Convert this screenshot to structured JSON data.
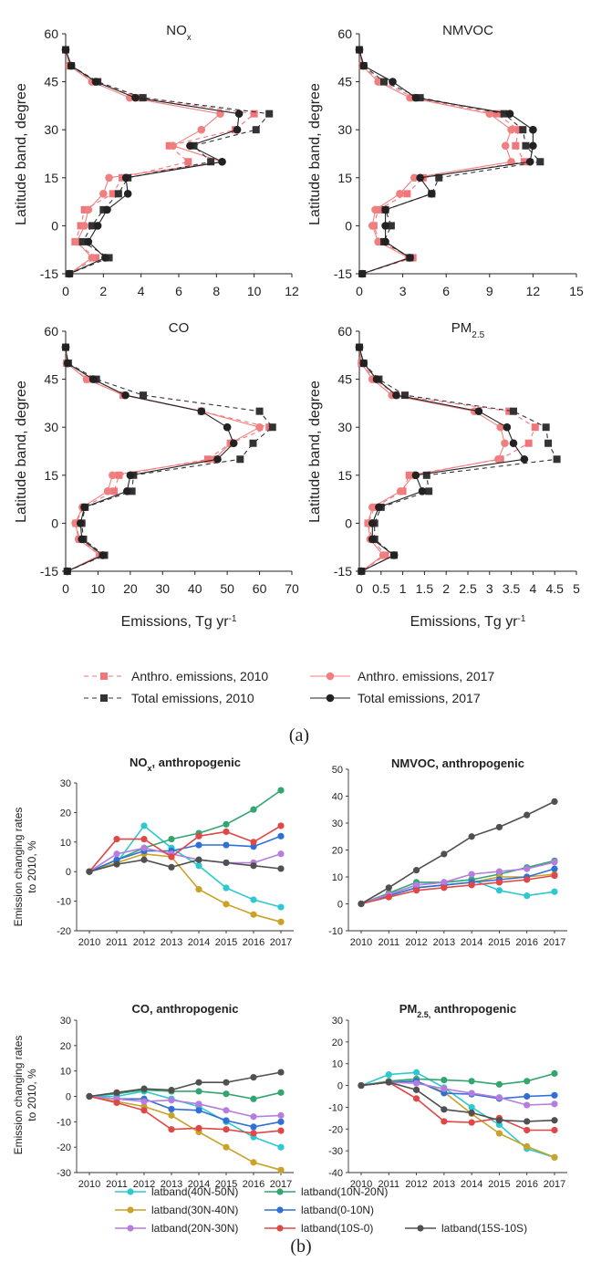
{
  "figure_a": {
    "caption": "(a)",
    "y_axis_label": "Latitude band, degree",
    "x_axis_label_main": "Emissions, Tg yr",
    "x_axis_label_sup": "-1",
    "legend": [
      {
        "label": "Anthro. emissions, 2010",
        "series": "anthro2010"
      },
      {
        "label": "Anthro. emissions, 2017",
        "series": "anthro2017"
      },
      {
        "label": "Total emissions, 2010",
        "series": "total2010"
      },
      {
        "label": "Total emissions, 2017",
        "series": "total2017"
      }
    ],
    "colors": {
      "anthro2010": "#f0767c",
      "anthro2017": "#f08080",
      "total2010": "#333333",
      "total2017": "#222222"
    }
  },
  "figure_b": {
    "caption": "(b)",
    "y_axis_label_line1": "Emission changing rates",
    "y_axis_label_line2": "to 2010, %",
    "legend": [
      {
        "label": "latband(40N-50N)",
        "color": "#2ec8d0"
      },
      {
        "label": "latband(10N-20N)",
        "color": "#34a56f"
      },
      {
        "label": "latband(30N-40N)",
        "color": "#c9a227"
      },
      {
        "label": "latband(0-10N)",
        "color": "#2f6fd6"
      },
      {
        "label": "latband(20N-30N)",
        "color": "#b57de0"
      },
      {
        "label": "latband(10S-0)",
        "color": "#e04848"
      },
      {
        "label": "latband(15S-10S)",
        "color": "#505050"
      }
    ]
  },
  "chart_data": [
    {
      "type": "line",
      "panel": "a1",
      "title_main": "NO",
      "title_sub": "x",
      "xlim": [
        0,
        12
      ],
      "xticks": [
        "0",
        "2",
        "4",
        "6",
        "8",
        "10",
        "12"
      ],
      "ylim": [
        -15,
        60
      ],
      "yticks": [
        "-15",
        "0",
        "15",
        "30",
        "45",
        "60"
      ],
      "y": [
        55,
        50,
        45,
        40,
        35,
        30,
        25,
        20,
        15,
        10,
        5,
        0,
        -5,
        -10,
        -15
      ],
      "series": [
        {
          "name": "Anthro. emissions, 2010",
          "key": "anthro2010",
          "values": [
            0,
            0.2,
            1.5,
            4.0,
            10.0,
            9.0,
            5.5,
            6.5,
            3.0,
            2.5,
            1.0,
            0.8,
            0.5,
            1.6,
            0.2
          ]
        },
        {
          "name": "Anthro. emissions, 2017",
          "key": "anthro2017",
          "values": [
            0,
            0.2,
            1.4,
            3.4,
            8.2,
            7.2,
            5.7,
            8.3,
            2.3,
            2.0,
            1.2,
            1.0,
            0.6,
            1.4,
            0.2
          ]
        },
        {
          "name": "Total emissions, 2010",
          "key": "total2010",
          "values": [
            0,
            0.3,
            1.7,
            4.1,
            10.8,
            10.1,
            6.8,
            7.7,
            3.3,
            2.8,
            2.0,
            1.4,
            0.9,
            2.3,
            0.2
          ]
        },
        {
          "name": "Total emissions, 2017",
          "key": "total2017",
          "values": [
            0,
            0.3,
            1.6,
            3.7,
            9.2,
            9.1,
            6.6,
            8.3,
            3.2,
            3.3,
            2.2,
            1.7,
            1.2,
            2.1,
            0.2
          ]
        }
      ]
    },
    {
      "type": "line",
      "panel": "a2",
      "title_main": "NMVOC",
      "title_sub": "",
      "xlim": [
        0,
        15
      ],
      "xticks": [
        "0",
        "3",
        "6",
        "9",
        "12",
        "15"
      ],
      "ylim": [
        -15,
        60
      ],
      "yticks": [
        "-15",
        "0",
        "15",
        "30",
        "45",
        "60"
      ],
      "y": [
        55,
        50,
        45,
        40,
        35,
        30,
        25,
        20,
        15,
        10,
        5,
        0,
        -5,
        -10,
        -15
      ],
      "series": [
        {
          "name": "Anthro. emissions, 2010",
          "key": "anthro2010",
          "values": [
            0,
            0.2,
            1.5,
            3.8,
            9.5,
            11.0,
            10.8,
            11.4,
            4.4,
            3.3,
            1.3,
            1.0,
            1.4,
            3.7,
            0.2
          ]
        },
        {
          "name": "Anthro. emissions, 2017",
          "key": "anthro2017",
          "values": [
            0,
            0.2,
            1.3,
            3.5,
            9.0,
            10.5,
            10.1,
            10.5,
            3.8,
            2.8,
            1.1,
            0.9,
            1.3,
            3.4,
            0.2
          ]
        },
        {
          "name": "Total emissions, 2010",
          "key": "total2010",
          "values": [
            0,
            0.3,
            1.7,
            4.2,
            10.0,
            11.3,
            11.5,
            12.5,
            5.5,
            5.0,
            1.8,
            2.2,
            1.7,
            3.5,
            0.2
          ]
        },
        {
          "name": "Total emissions, 2017",
          "key": "total2017",
          "values": [
            0,
            0.3,
            2.3,
            3.9,
            10.4,
            12.0,
            12.0,
            11.8,
            4.2,
            5.0,
            1.8,
            1.8,
            1.8,
            3.5,
            0.2
          ]
        }
      ]
    },
    {
      "type": "line",
      "panel": "a3",
      "title_main": "CO",
      "title_sub": "",
      "xlim": [
        0,
        70
      ],
      "xticks": [
        "0",
        "10",
        "20",
        "30",
        "40",
        "50",
        "60",
        "70"
      ],
      "ylim": [
        -15,
        60
      ],
      "yticks": [
        "-15",
        "0",
        "15",
        "30",
        "45",
        "60"
      ],
      "y": [
        55,
        50,
        45,
        40,
        35,
        30,
        25,
        20,
        15,
        10,
        5,
        0,
        -5,
        -10,
        -15
      ],
      "series": [
        {
          "name": "Anthro. emissions, 2010",
          "key": "anthro2010",
          "values": [
            0,
            0.3,
            6.8,
            17.8,
            42.0,
            63.0,
            51.0,
            44.0,
            16.5,
            15.0,
            5.5,
            3.2,
            4.3,
            11.0,
            0.5
          ]
        },
        {
          "name": "Anthro. emissions, 2017",
          "key": "anthro2017",
          "values": [
            0,
            0.3,
            6.5,
            18.0,
            42.0,
            60.0,
            51.0,
            46.0,
            14.5,
            13.0,
            5.2,
            3.0,
            4.0,
            10.5,
            0.5
          ]
        },
        {
          "name": "Total emissions, 2010",
          "key": "total2010",
          "values": [
            0,
            0.8,
            9.5,
            24.0,
            60.0,
            64.0,
            58.0,
            54.0,
            21.0,
            20.5,
            6.0,
            5.0,
            5.5,
            12.0,
            0.5
          ]
        },
        {
          "name": "Total emissions, 2017",
          "key": "total2017",
          "values": [
            0,
            0.6,
            8.5,
            18.5,
            42.0,
            50.0,
            52.0,
            47.0,
            20.0,
            19.0,
            5.8,
            4.6,
            5.0,
            11.5,
            0.5
          ]
        }
      ]
    },
    {
      "type": "line",
      "panel": "a4",
      "title_main": "PM",
      "title_sub": "2.5",
      "xlim": [
        0,
        5
      ],
      "xticks": [
        "0",
        "0.5",
        "1",
        "1.5",
        "2",
        "2.5",
        "3",
        "3.5",
        "4",
        "4.5",
        "5"
      ],
      "ylim": [
        -15,
        60
      ],
      "yticks": [
        "-15",
        "0",
        "15",
        "30",
        "45",
        "60"
      ],
      "y": [
        55,
        50,
        45,
        40,
        35,
        30,
        25,
        20,
        15,
        10,
        5,
        0,
        -5,
        -10,
        -15
      ],
      "series": [
        {
          "name": "Anthro. emissions, 2010",
          "key": "anthro2010",
          "values": [
            0,
            0.05,
            0.35,
            0.85,
            3.45,
            4.05,
            3.9,
            3.25,
            1.15,
            1.0,
            0.35,
            0.2,
            0.3,
            0.6,
            0.05
          ]
        },
        {
          "name": "Anthro. emissions, 2017",
          "key": "anthro2017",
          "values": [
            0,
            0.05,
            0.3,
            0.75,
            2.65,
            3.25,
            3.35,
            3.2,
            1.25,
            0.95,
            0.3,
            0.2,
            0.25,
            0.55,
            0.05
          ]
        },
        {
          "name": "Total emissions, 2010",
          "key": "total2010",
          "values": [
            0,
            0.1,
            0.45,
            1.05,
            3.55,
            4.3,
            4.35,
            4.55,
            1.55,
            1.6,
            0.5,
            0.35,
            0.35,
            0.8,
            0.05
          ]
        },
        {
          "name": "Total emissions, 2017",
          "key": "total2017",
          "values": [
            0,
            0.1,
            0.4,
            0.85,
            2.75,
            3.4,
            3.55,
            3.8,
            1.3,
            1.45,
            0.45,
            0.3,
            0.3,
            0.8,
            0.05
          ]
        }
      ]
    },
    {
      "type": "line",
      "panel": "b1",
      "title_main": "NO",
      "title_sub": "x",
      "title_rest": ", anthropogenic",
      "x": [
        "2010",
        "2011",
        "2012",
        "2013",
        "2014",
        "2015",
        "2016",
        "2017"
      ],
      "ylim": [
        -20,
        30
      ],
      "yticks": [
        "-20",
        "-10",
        "0",
        "10",
        "20",
        "30"
      ],
      "series": [
        {
          "name": "latband(40N-50N)",
          "color": "#2ec8d0",
          "values": [
            0,
            3,
            15.5,
            8,
            2,
            -5.5,
            -9.5,
            -12
          ]
        },
        {
          "name": "latband(10N-20N)",
          "color": "#34a56f",
          "values": [
            0,
            4,
            8,
            11,
            13,
            16,
            21,
            27.5
          ]
        },
        {
          "name": "latband(30N-40N)",
          "color": "#c9a227",
          "values": [
            0,
            3,
            6,
            5,
            -6,
            -11,
            -14.5,
            -17
          ]
        },
        {
          "name": "latband(0-10N)",
          "color": "#2f6fd6",
          "values": [
            0,
            4,
            7,
            7,
            9,
            9,
            8.5,
            12
          ]
        },
        {
          "name": "latband(20N-30N)",
          "color": "#b57de0",
          "values": [
            0,
            6,
            8,
            6,
            4,
            3,
            3,
            6
          ]
        },
        {
          "name": "latband(10S-0)",
          "color": "#e04848",
          "values": [
            0,
            11,
            11,
            5,
            12,
            13.5,
            10,
            15.5
          ]
        },
        {
          "name": "latband(15S-10S)",
          "color": "#505050",
          "values": [
            0,
            2.5,
            4,
            1.5,
            4,
            3,
            2,
            1
          ]
        }
      ]
    },
    {
      "type": "line",
      "panel": "b2",
      "title_main": "NMVOC, anthropogenic",
      "title_sub": "",
      "title_rest": "",
      "x": [
        "2010",
        "2011",
        "2012",
        "2013",
        "2014",
        "2015",
        "2016",
        "2017"
      ],
      "ylim": [
        -10,
        50
      ],
      "yticks": [
        "-10",
        "0",
        "10",
        "20",
        "30",
        "40",
        "50"
      ],
      "series": [
        {
          "name": "latband(40N-50N)",
          "color": "#2ec8d0",
          "values": [
            0,
            3.5,
            7,
            8,
            9,
            5,
            3,
            4.5
          ]
        },
        {
          "name": "latband(10N-20N)",
          "color": "#34a56f",
          "values": [
            0,
            4,
            8,
            8,
            9,
            11,
            13.5,
            16
          ]
        },
        {
          "name": "latband(30N-40N)",
          "color": "#c9a227",
          "values": [
            0,
            3,
            6,
            7,
            8,
            10,
            10,
            11
          ]
        },
        {
          "name": "latband(0-10N)",
          "color": "#2f6fd6",
          "values": [
            0,
            3,
            6,
            7,
            8,
            9,
            10,
            13
          ]
        },
        {
          "name": "latband(20N-30N)",
          "color": "#b57de0",
          "values": [
            0,
            3.5,
            7,
            8,
            11,
            12,
            13,
            15.5
          ]
        },
        {
          "name": "latband(10S-0)",
          "color": "#e04848",
          "values": [
            0,
            2.5,
            5,
            6,
            7,
            8,
            9,
            10.5
          ]
        },
        {
          "name": "latband(15S-10S)",
          "color": "#505050",
          "values": [
            0,
            6,
            12.5,
            18.5,
            25,
            28.5,
            33,
            38
          ]
        }
      ]
    },
    {
      "type": "line",
      "panel": "b3",
      "title_main": "CO, anthropogenic",
      "title_sub": "",
      "title_rest": "",
      "x": [
        "2010",
        "2011",
        "2012",
        "2013",
        "2014",
        "2015",
        "2016",
        "2017"
      ],
      "ylim": [
        -30,
        30
      ],
      "yticks": [
        "-30",
        "-20",
        "-10",
        "0",
        "10",
        "20",
        "30"
      ],
      "series": [
        {
          "name": "latband(40N-50N)",
          "color": "#2ec8d0",
          "values": [
            0,
            0,
            2,
            -1,
            -4,
            -10,
            -16,
            -20
          ]
        },
        {
          "name": "latband(10N-20N)",
          "color": "#34a56f",
          "values": [
            0,
            1,
            2.5,
            2,
            2,
            1,
            -1,
            1.5
          ]
        },
        {
          "name": "latband(30N-40N)",
          "color": "#c9a227",
          "values": [
            0,
            -2,
            -4,
            -7.5,
            -14,
            -20,
            -26,
            -29
          ]
        },
        {
          "name": "latband(0-10N)",
          "color": "#2f6fd6",
          "values": [
            0,
            -1,
            -1,
            -5,
            -5.5,
            -9.5,
            -12,
            -10
          ]
        },
        {
          "name": "latband(20N-30N)",
          "color": "#b57de0",
          "values": [
            0,
            -1,
            -2,
            -1.5,
            -3,
            -5.5,
            -8,
            -7.5
          ]
        },
        {
          "name": "latband(10S-0)",
          "color": "#e04848",
          "values": [
            0,
            -2.5,
            -5.5,
            -13,
            -12.5,
            -13,
            -14.5,
            -13.5
          ]
        },
        {
          "name": "latband(15S-10S)",
          "color": "#505050",
          "values": [
            0,
            1.5,
            3,
            2.5,
            5.5,
            5.5,
            7.5,
            9.5
          ]
        }
      ]
    },
    {
      "type": "line",
      "panel": "b4",
      "title_main": "PM",
      "title_sub": "2.5,",
      "title_rest": " anthropogenic",
      "x": [
        "2010",
        "2011",
        "2012",
        "2013",
        "2014",
        "2015",
        "2016",
        "2017"
      ],
      "ylim": [
        -40,
        30
      ],
      "yticks": [
        "-40",
        "-30",
        "-20",
        "-10",
        "0",
        "10",
        "20",
        "30"
      ],
      "series": [
        {
          "name": "latband(40N-50N)",
          "color": "#2ec8d0",
          "values": [
            0,
            5,
            6,
            -1,
            -10,
            -18,
            -29,
            -33
          ]
        },
        {
          "name": "latband(10N-20N)",
          "color": "#34a56f",
          "values": [
            0,
            2,
            3,
            2.5,
            2,
            0.5,
            2,
            5.5
          ]
        },
        {
          "name": "latband(30N-40N)",
          "color": "#c9a227",
          "values": [
            0,
            1.5,
            2,
            -3,
            -13,
            -22,
            -28,
            -33
          ]
        },
        {
          "name": "latband(0-10N)",
          "color": "#2f6fd6",
          "values": [
            0,
            1.5,
            2,
            -3.5,
            -4,
            -6,
            -5,
            -4.5
          ]
        },
        {
          "name": "latband(20N-30N)",
          "color": "#b57de0",
          "values": [
            0,
            1.5,
            1,
            -1.5,
            -3.5,
            -5.5,
            -9,
            -8.5
          ]
        },
        {
          "name": "latband(10S-0)",
          "color": "#e04848",
          "values": [
            0,
            1.5,
            -6,
            -16.5,
            -17,
            -15,
            -20.5,
            -20.5
          ]
        },
        {
          "name": "latband(15S-10S)",
          "color": "#505050",
          "values": [
            0,
            1.5,
            -2,
            -11,
            -12.5,
            -16,
            -16.5,
            -16
          ]
        }
      ]
    }
  ]
}
